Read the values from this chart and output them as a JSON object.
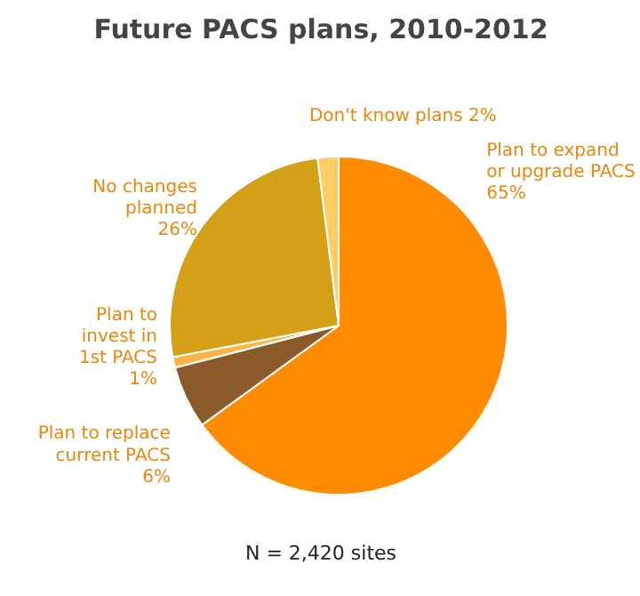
{
  "chart_data": {
    "type": "pie",
    "title": "Future PACS plans, 2010-2012",
    "categories": [
      "Plan to expand or upgrade PACS",
      "Plan to replace current PACS",
      "Plan to invest in 1st PACS",
      "No changes planned",
      "Don't know plans"
    ],
    "values": [
      65,
      6,
      1,
      26,
      2
    ],
    "colors": [
      "#ff8c00",
      "#8b5a2b",
      "#ffb347",
      "#d4a017",
      "#ffcc66"
    ],
    "value_labels": [
      "65%",
      "6%",
      "1%",
      "26%",
      "2%"
    ],
    "annotations": [
      "N = 2,420 sites"
    ]
  }
}
